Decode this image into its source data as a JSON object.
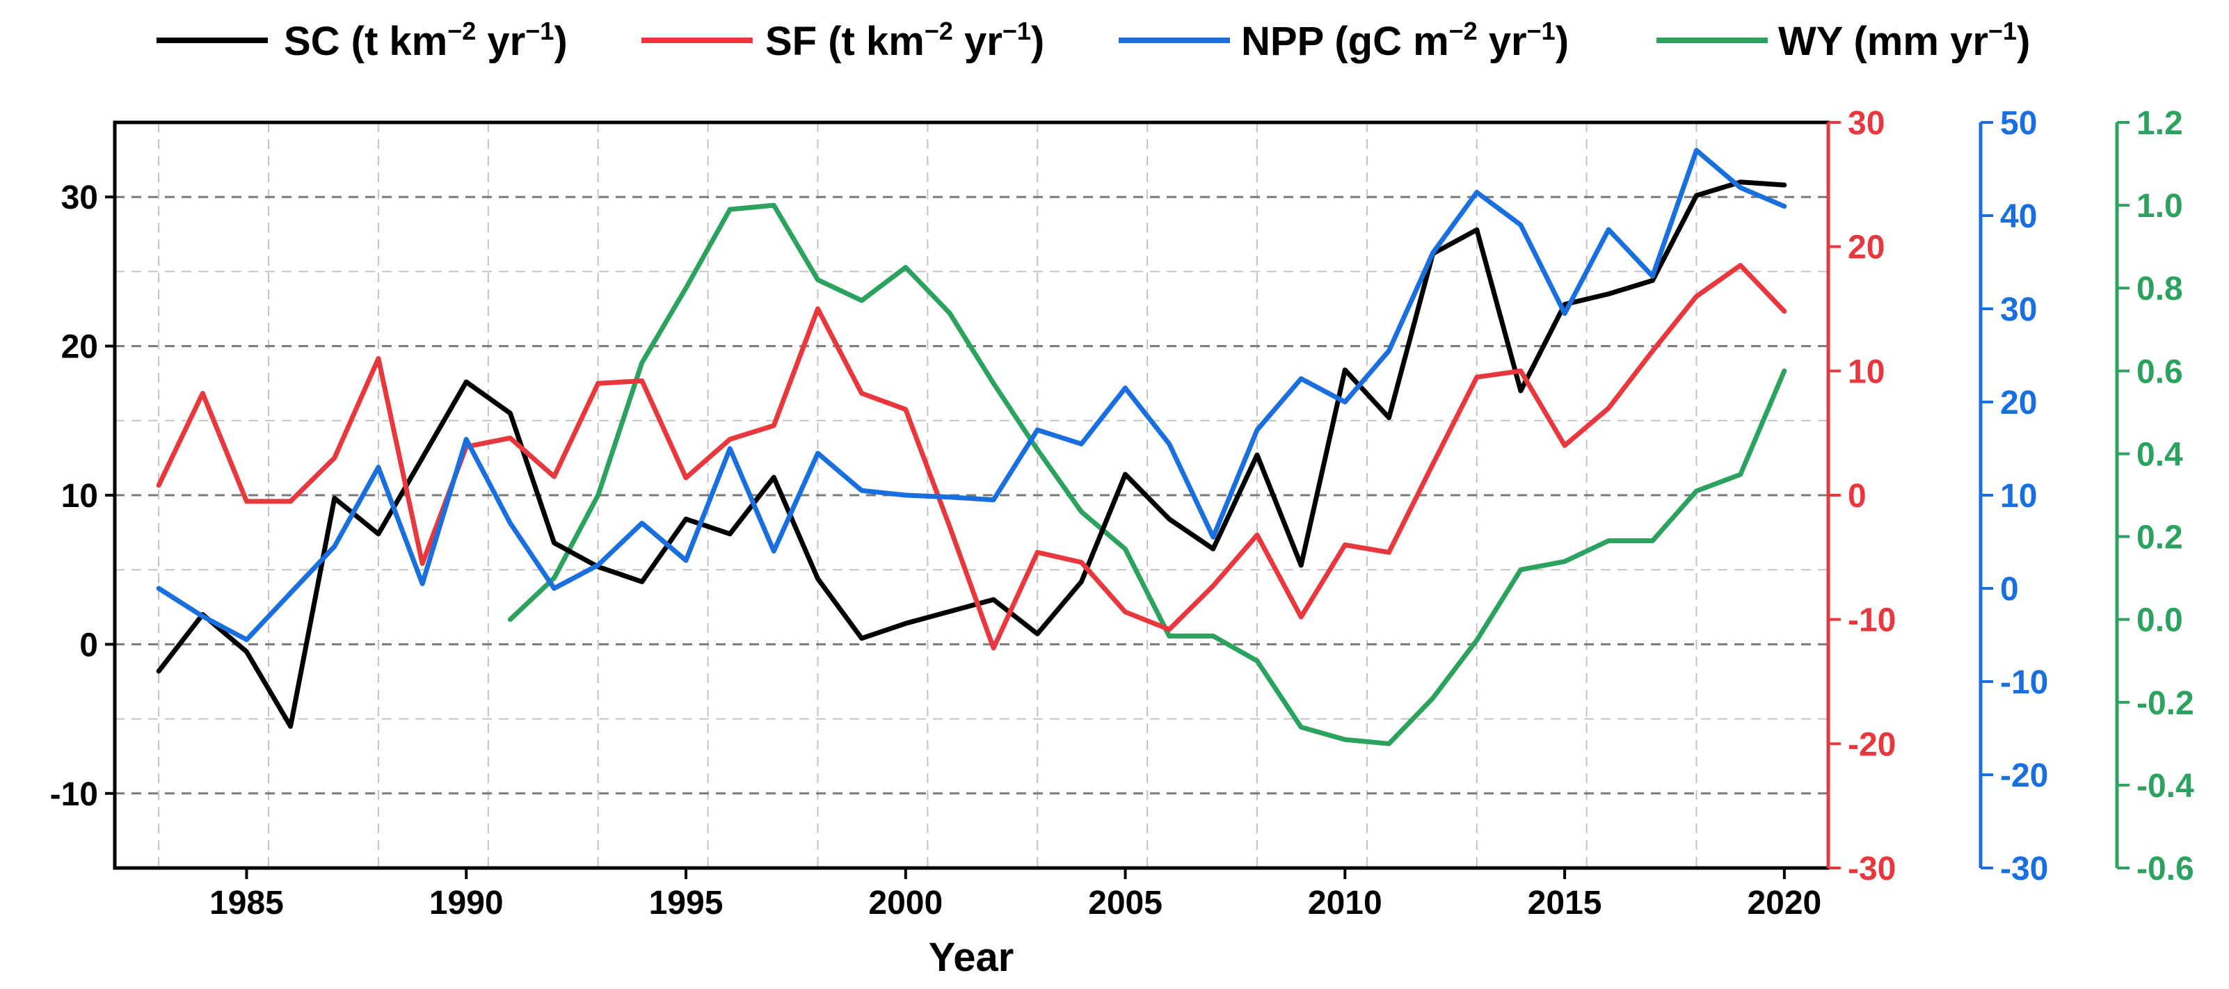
{
  "chart_data": {
    "type": "line",
    "xlabel": "Year",
    "xlim": [
      1982,
      2021
    ],
    "x_ticks": [
      "1985",
      "1990",
      "1995",
      "2000",
      "2005",
      "2010",
      "2015",
      "2020"
    ],
    "grid": "dashed, major and minor",
    "legend_position": "top",
    "axes": {
      "SC": {
        "ylim": [
          -15,
          35
        ],
        "ticks": [
          "-10",
          "0",
          "10",
          "20",
          "30"
        ],
        "color": "#000000",
        "position": "left"
      },
      "SF": {
        "ylim": [
          -30,
          30
        ],
        "ticks": [
          "-30",
          "-20",
          "-10",
          "0",
          "10",
          "20",
          "30"
        ],
        "color": "#e8383d",
        "position": "right-1"
      },
      "NPP": {
        "ylim": [
          -30,
          50
        ],
        "ticks": [
          "-30",
          "-20",
          "-10",
          "0",
          "10",
          "20",
          "30",
          "40",
          "50"
        ],
        "color": "#1a6fdf",
        "position": "right-2"
      },
      "WY": {
        "ylim": [
          -0.6,
          1.2
        ],
        "ticks": [
          "-0.6",
          "-0.4",
          "-0.2",
          "0.0",
          "0.2",
          "0.4",
          "0.6",
          "0.8",
          "1.0",
          "1.2"
        ],
        "color": "#2ca25f",
        "position": "right-3"
      }
    },
    "series": [
      {
        "name": "SC",
        "legend_main": "SC (t km",
        "legend_exp1": "−2",
        "legend_mid": " yr",
        "legend_exp2": "−1",
        "legend_end": ")",
        "color": "#000000",
        "axis": "SC",
        "x": [
          1983,
          1984,
          1985,
          1986,
          1987,
          1988,
          1989,
          1990,
          1991,
          1992,
          1993,
          1994,
          1995,
          1996,
          1997,
          1998,
          1999,
          2000,
          2001,
          2002,
          2003,
          2004,
          2005,
          2006,
          2007,
          2008,
          2009,
          2010,
          2011,
          2012,
          2013,
          2014,
          2015,
          2016,
          2017,
          2018,
          2019,
          2020
        ],
        "values": [
          -1.8,
          2.0,
          -0.5,
          -5.5,
          9.8,
          7.4,
          12.5,
          17.6,
          15.5,
          6.8,
          5.2,
          4.2,
          8.4,
          7.4,
          11.2,
          4.4,
          0.4,
          1.4,
          2.2,
          3.0,
          0.7,
          4.2,
          11.4,
          8.4,
          6.4,
          12.7,
          5.3,
          18.4,
          15.2,
          26.2,
          27.8,
          17.0,
          22.8,
          23.5,
          24.4,
          30.1,
          31.0,
          30.8
        ]
      },
      {
        "name": "SF",
        "legend_main": "SF (t km",
        "legend_exp1": "−2",
        "legend_mid": " yr",
        "legend_exp2": "−1",
        "legend_end": ")",
        "color": "#e8383d",
        "axis": "SF",
        "x": [
          1983,
          1984,
          1985,
          1986,
          1987,
          1988,
          1989,
          1990,
          1991,
          1992,
          1993,
          1994,
          1995,
          1996,
          1997,
          1998,
          1999,
          2000,
          2001,
          2002,
          2003,
          2004,
          2005,
          2006,
          2007,
          2008,
          2009,
          2010,
          2011,
          2012,
          2013,
          2014,
          2015,
          2016,
          2017,
          2018,
          2019,
          2020
        ],
        "values": [
          0.8,
          8.2,
          -0.5,
          -0.5,
          3.0,
          11.0,
          -5.5,
          3.9,
          4.6,
          1.5,
          9.0,
          9.2,
          1.4,
          4.5,
          5.6,
          15.0,
          8.2,
          6.9,
          -2.5,
          -12.3,
          -4.6,
          -5.4,
          -9.4,
          -10.8,
          -7.3,
          -3.2,
          -9.8,
          -4.0,
          -4.6,
          2.5,
          9.5,
          10.0,
          4.0,
          7.0,
          11.6,
          16.0,
          18.5,
          14.8
        ]
      },
      {
        "name": "NPP",
        "legend_main": "NPP (gC m",
        "legend_exp1": "−2",
        "legend_mid": " yr",
        "legend_exp2": "−1",
        "legend_end": ")",
        "color": "#1a6fdf",
        "axis": "NPP",
        "x": [
          1983,
          1984,
          1985,
          1986,
          1987,
          1988,
          1989,
          1990,
          1991,
          1992,
          1993,
          1994,
          1995,
          1996,
          1997,
          1998,
          1999,
          2000,
          2001,
          2002,
          2003,
          2004,
          2005,
          2006,
          2007,
          2008,
          2009,
          2010,
          2011,
          2012,
          2013,
          2014,
          2015,
          2016,
          2017,
          2018,
          2019,
          2020
        ],
        "values": [
          0.0,
          -3.0,
          -5.5,
          -0.5,
          4.5,
          13.0,
          0.5,
          16.0,
          7.0,
          0.0,
          2.5,
          7.0,
          3.0,
          15.0,
          4.0,
          14.5,
          10.5,
          10.0,
          9.8,
          9.5,
          17.0,
          15.5,
          21.5,
          15.5,
          5.5,
          17.0,
          22.5,
          20.0,
          25.5,
          36.0,
          42.5,
          39.0,
          29.5,
          38.5,
          33.5,
          47.0,
          43.0,
          41.0
        ]
      },
      {
        "name": "WY",
        "legend_main": "WY (mm yr",
        "legend_exp1": "−1",
        "legend_mid": "",
        "legend_exp2": "",
        "legend_end": ")",
        "color": "#2ca25f",
        "axis": "WY",
        "x": [
          1991,
          1992,
          1993,
          1994,
          1995,
          1996,
          1997,
          1998,
          1999,
          2000,
          2001,
          2002,
          2003,
          2004,
          2005,
          2006,
          2007,
          2008,
          2009,
          2010,
          2011,
          2012,
          2013,
          2014,
          2015,
          2016,
          2017,
          2018,
          2019,
          2020
        ],
        "values": [
          0.0,
          0.1,
          0.3,
          0.62,
          0.8,
          0.99,
          1.0,
          0.82,
          0.77,
          0.85,
          0.74,
          0.57,
          0.41,
          0.26,
          0.17,
          -0.04,
          -0.04,
          -0.1,
          -0.26,
          -0.29,
          -0.3,
          -0.19,
          -0.05,
          0.12,
          0.14,
          0.19,
          0.19,
          0.31,
          0.35,
          0.6
        ]
      }
    ]
  }
}
